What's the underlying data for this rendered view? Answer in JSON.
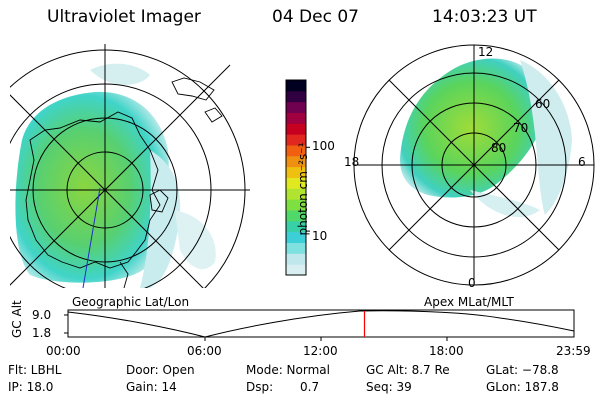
{
  "header": {
    "instrument": "Ultraviolet Imager",
    "date": "04 Dec 07",
    "time": "14:03:23 UT"
  },
  "left_panel": {
    "label": "Geographic Lat/Lon"
  },
  "right_panel": {
    "label": "Apex MLat/MLT",
    "mlt_labels": {
      "top": "12",
      "left": "18",
      "right": "6",
      "bottom": "0"
    },
    "lat_labels": [
      "60",
      "70",
      "80"
    ]
  },
  "colorbar": {
    "unit_label": "photon cm⁻²s⁻¹",
    "ticks": [
      {
        "label": "100",
        "fraction": 0.655
      },
      {
        "label": "10",
        "fraction": 0.225
      }
    ],
    "colors": [
      "#d8eef0",
      "#c0e8ec",
      "#7fe0e0",
      "#3ccfd8",
      "#38d0a8",
      "#50d868",
      "#7ee040",
      "#b0e430",
      "#e0e820",
      "#f0c010",
      "#f09010",
      "#f06010",
      "#e02820",
      "#c80020",
      "#a00040",
      "#700050",
      "#300040",
      "#000020"
    ]
  },
  "altitude_plot": {
    "axis_label": "GC Alt",
    "y_ticks": [
      "9.0",
      "1.8"
    ],
    "x_ticks": [
      "00:00",
      "06:00",
      "12:00",
      "18:00",
      "23:59"
    ],
    "current_time_fraction": 0.586,
    "marker_color": "#ff0000"
  },
  "info": {
    "filter": "Flt: LBHL",
    "ip": "IP: 18.0",
    "door": "Door: Open",
    "gain": "Gain: 14",
    "mode": "Mode: Normal",
    "dsp_label": "Dsp:",
    "dsp_value": "0.7",
    "gc_alt": "GC Alt: 8.7 Re",
    "seq": "Seq: 39",
    "glat": "GLat: −78.8",
    "glon": "GLon: 187.8"
  }
}
